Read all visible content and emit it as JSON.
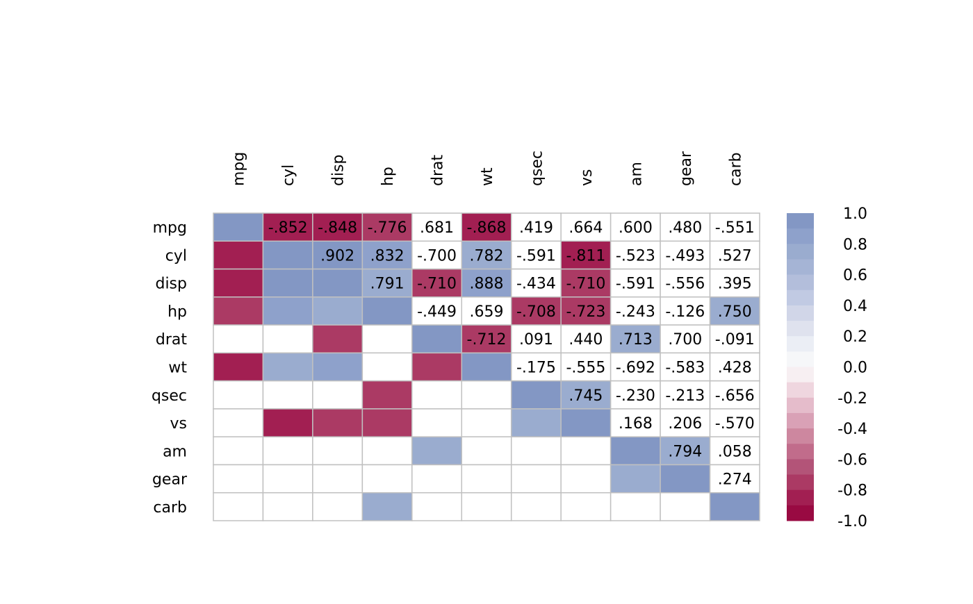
{
  "chart_data": {
    "type": "heatmap",
    "title": "",
    "variables": [
      "mpg",
      "cyl",
      "disp",
      "hp",
      "drat",
      "wt",
      "qsec",
      "vs",
      "am",
      "gear",
      "carb"
    ],
    "upper_triangle": "numbers",
    "lower_triangle": "colored squares",
    "color_threshold_abs": 0.7,
    "matrix": [
      [
        1,
        -0.852,
        -0.848,
        -0.776,
        0.681,
        -0.868,
        0.419,
        0.664,
        0.6,
        0.48,
        -0.551
      ],
      [
        -0.852,
        1,
        0.902,
        0.832,
        -0.7,
        0.782,
        -0.591,
        -0.811,
        -0.523,
        -0.493,
        0.527
      ],
      [
        -0.848,
        0.902,
        1,
        0.791,
        -0.71,
        0.888,
        -0.434,
        -0.71,
        -0.591,
        -0.556,
        0.395
      ],
      [
        -0.776,
        0.832,
        0.791,
        1,
        -0.449,
        0.659,
        -0.708,
        -0.723,
        -0.243,
        -0.126,
        0.75
      ],
      [
        0.681,
        -0.7,
        -0.71,
        -0.449,
        1,
        -0.712,
        0.091,
        0.44,
        0.713,
        0.7,
        -0.091
      ],
      [
        -0.868,
        0.782,
        0.888,
        0.659,
        -0.712,
        1,
        -0.175,
        -0.555,
        -0.692,
        -0.583,
        0.428
      ],
      [
        0.419,
        -0.591,
        -0.434,
        -0.708,
        0.091,
        -0.175,
        1,
        0.745,
        -0.23,
        -0.213,
        -0.656
      ],
      [
        0.664,
        -0.811,
        -0.71,
        -0.723,
        0.44,
        -0.555,
        0.745,
        1,
        0.168,
        0.206,
        -0.57
      ],
      [
        0.6,
        -0.523,
        -0.591,
        -0.243,
        0.713,
        -0.692,
        -0.23,
        0.168,
        1,
        0.794,
        0.058
      ],
      [
        0.48,
        -0.493,
        -0.556,
        -0.126,
        0.7,
        -0.583,
        -0.213,
        0.206,
        0.794,
        1,
        0.274
      ],
      [
        -0.551,
        0.527,
        0.395,
        0.75,
        -0.091,
        0.428,
        -0.656,
        -0.57,
        0.058,
        0.274,
        1
      ]
    ],
    "colorbar": {
      "range": [
        -1,
        1
      ],
      "ticks": [
        "1.0",
        "0.8",
        "0.6",
        "0.4",
        "0.2",
        "0.0",
        "-0.2",
        "-0.4",
        "-0.6",
        "-0.8",
        "-1.0"
      ],
      "colors_top_to_bottom": [
        "#8397c4",
        "#8ea1cb",
        "#9aaccf",
        "#a5b4d5",
        "#b3bedb",
        "#c1cae3",
        "#d1d6e8",
        "#dfe2ee",
        "#ebeef5",
        "#f6f7f9",
        "#f7eff2",
        "#efd6df",
        "#e5bccb",
        "#d9a1b6",
        "#cd879f",
        "#c16c8b",
        "#b35478",
        "#ab3a64",
        "#a21f52",
        "#990a42"
      ]
    },
    "grid_color": "#c0c0c0"
  }
}
